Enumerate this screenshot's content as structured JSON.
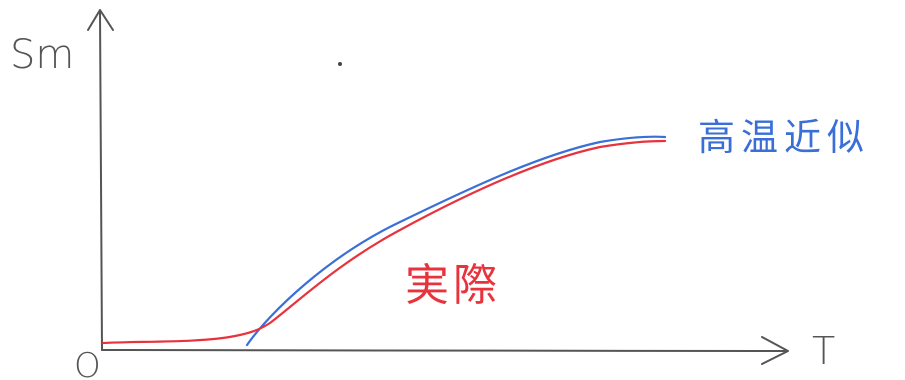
{
  "axes": {
    "y_label": "Sm",
    "x_label": "T",
    "origin_label": "O"
  },
  "curves": [
    {
      "name": "高温近似",
      "color": "#3a6fd8"
    },
    {
      "name": "実際",
      "color": "#e8323c"
    }
  ],
  "colors": {
    "axis": "#555555",
    "background": "#ffffff"
  }
}
